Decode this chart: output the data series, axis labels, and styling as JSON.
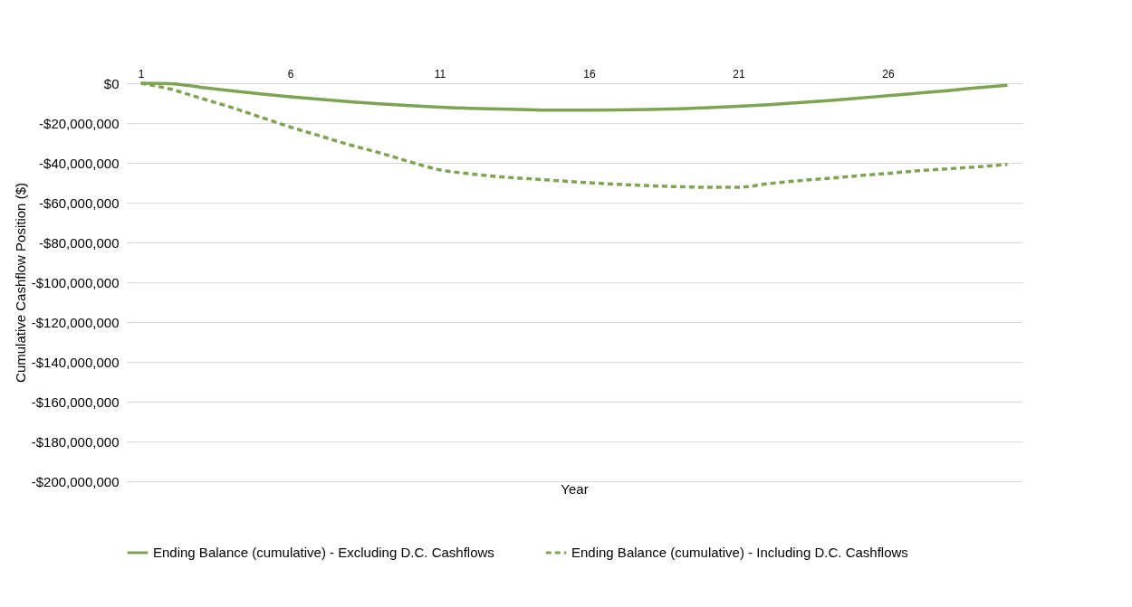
{
  "chart_data": {
    "type": "line",
    "xlabel": "Year",
    "ylabel": "Cumulative Cashflow Position ($)",
    "categories": [
      "1",
      null,
      null,
      null,
      null,
      "6",
      null,
      null,
      null,
      null,
      "11",
      null,
      null,
      null,
      null,
      "16",
      null,
      null,
      null,
      null,
      "21",
      null,
      null,
      null,
      null,
      "26",
      null,
      null,
      null,
      null
    ],
    "series": [
      {
        "name": "Ending Balance (cumulative) - Excluding D.C. Cashflows",
        "color": "#7ea453",
        "line_style": "solid",
        "values": [
          0,
          -200000,
          -2000000,
          -3700000,
          -5300000,
          -6800000,
          -8100000,
          -9300000,
          -10300000,
          -11200000,
          -12000000,
          -12600000,
          -13000000,
          -13300000,
          -13500000,
          -13500000,
          -13400000,
          -13200000,
          -12800000,
          -12300000,
          -11600000,
          -10800000,
          -9800000,
          -8700000,
          -7500000,
          -6300000,
          -5000000,
          -3700000,
          -2300000,
          -1000000
        ]
      },
      {
        "name": "Ending Balance (cumulative) - Including D.C. Cashflows",
        "color": "#7ea453",
        "line_style": "dashed",
        "values": [
          0,
          -3000000,
          -7500000,
          -12000000,
          -17000000,
          -22000000,
          -26500000,
          -31000000,
          -35000000,
          -39500000,
          -43500000,
          -45500000,
          -47000000,
          -48000000,
          -49000000,
          -50000000,
          -50800000,
          -51500000,
          -52000000,
          -52300000,
          -52300000,
          -50500000,
          -49000000,
          -47800000,
          -46500000,
          -45300000,
          -44000000,
          -43000000,
          -42000000,
          -40800000
        ]
      }
    ],
    "ylim": [
      -200000000,
      0
    ],
    "yticks": [
      {
        "value": 0,
        "label": "$0"
      },
      {
        "value": -20000000,
        "label": "-$20,000,000"
      },
      {
        "value": -40000000,
        "label": "-$40,000,000"
      },
      {
        "value": -60000000,
        "label": "-$60,000,000"
      },
      {
        "value": -80000000,
        "label": "-$80,000,000"
      },
      {
        "value": -100000000,
        "label": "-$100,000,000"
      },
      {
        "value": -120000000,
        "label": "-$120,000,000"
      },
      {
        "value": -140000000,
        "label": "-$140,000,000"
      },
      {
        "value": -160000000,
        "label": "-$160,000,000"
      },
      {
        "value": -180000000,
        "label": "-$180,000,000"
      },
      {
        "value": -200000000,
        "label": "-$200,000,000"
      }
    ],
    "grid": "y",
    "legend": "bottom",
    "marker": "none"
  }
}
